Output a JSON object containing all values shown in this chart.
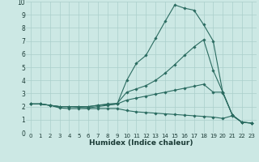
{
  "xlabel": "Humidex (Indice chaleur)",
  "xlim": [
    -0.5,
    23.5
  ],
  "ylim": [
    0,
    10
  ],
  "background_color": "#cce8e4",
  "grid_color": "#aacfcb",
  "line_color": "#2a6b60",
  "lines": [
    {
      "x": [
        0,
        1,
        2,
        3,
        4,
        5,
        6,
        7,
        8,
        9,
        10,
        11,
        12,
        13,
        14,
        15,
        16,
        17,
        18,
        19,
        20,
        21,
        22,
        23
      ],
      "y": [
        2.2,
        2.2,
        2.1,
        2.0,
        2.0,
        2.0,
        2.0,
        2.1,
        2.15,
        2.2,
        4.0,
        5.3,
        5.9,
        7.2,
        8.5,
        9.75,
        9.5,
        9.35,
        8.25,
        7.0,
        3.05,
        1.35,
        0.8,
        0.75
      ]
    },
    {
      "x": [
        0,
        1,
        2,
        3,
        4,
        5,
        6,
        7,
        8,
        9,
        10,
        11,
        12,
        13,
        14,
        15,
        16,
        17,
        18,
        19,
        20,
        21,
        22,
        23
      ],
      "y": [
        2.2,
        2.2,
        2.1,
        2.0,
        2.0,
        2.0,
        2.0,
        2.1,
        2.2,
        2.25,
        3.1,
        3.35,
        3.6,
        4.0,
        4.55,
        5.2,
        5.9,
        6.55,
        7.1,
        4.75,
        3.1,
        1.35,
        0.8,
        0.75
      ]
    },
    {
      "x": [
        0,
        1,
        2,
        3,
        4,
        5,
        6,
        7,
        8,
        9,
        10,
        11,
        12,
        13,
        14,
        15,
        16,
        17,
        18,
        19,
        20,
        21,
        22,
        23
      ],
      "y": [
        2.2,
        2.2,
        2.1,
        2.0,
        2.0,
        1.95,
        1.9,
        2.0,
        2.1,
        2.2,
        2.5,
        2.65,
        2.8,
        2.95,
        3.1,
        3.25,
        3.4,
        3.55,
        3.7,
        3.1,
        3.1,
        1.35,
        0.8,
        0.75
      ]
    },
    {
      "x": [
        0,
        1,
        2,
        3,
        4,
        5,
        6,
        7,
        8,
        9,
        10,
        11,
        12,
        13,
        14,
        15,
        16,
        17,
        18,
        19,
        20,
        21,
        22,
        23
      ],
      "y": [
        2.2,
        2.2,
        2.1,
        1.9,
        1.85,
        1.85,
        1.85,
        1.85,
        1.85,
        1.85,
        1.7,
        1.6,
        1.55,
        1.5,
        1.45,
        1.4,
        1.35,
        1.3,
        1.25,
        1.2,
        1.1,
        1.3,
        0.8,
        0.75
      ]
    }
  ]
}
